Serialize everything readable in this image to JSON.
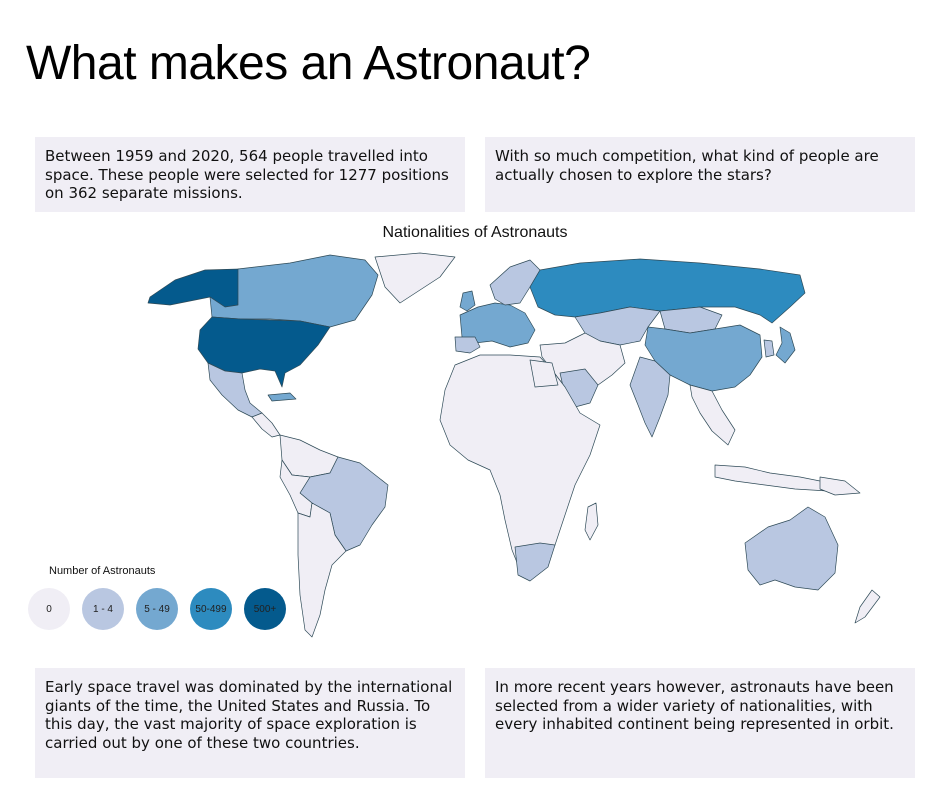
{
  "page_title": "What makes an Astronaut?",
  "intro": {
    "left": "Between 1959 and 2020, 564 people travelled into space. These people were selected for 1277 positions on 362 separate missions.",
    "right": "With so much competition, what kind of people are actually chosen to explore the stars?"
  },
  "map": {
    "title": "Nationalities of Astronauts",
    "legend": {
      "title": "Number of Astronauts",
      "bins": [
        {
          "label": "0",
          "color": "#f0eef5"
        },
        {
          "label": "1 - 4",
          "color": "#b9c7e1"
        },
        {
          "label": "5 - 49",
          "color": "#74a8d0"
        },
        {
          "label": "50-499",
          "color": "#2d8bbf"
        },
        {
          "label": "500+",
          "color": "#045a8d"
        }
      ]
    },
    "colors": {
      "border": "#2e4a57",
      "ocean": "#ffffff"
    }
  },
  "outro": {
    "left": "Early space travel was dominated by the international giants of the time, the United States and Russia. To this day, the vast majority of space exploration is carried out by one of these two countries.",
    "right": "In more recent years however, astronauts have been selected from a wider variety of nationalities, with every inhabited continent being represented in orbit."
  }
}
